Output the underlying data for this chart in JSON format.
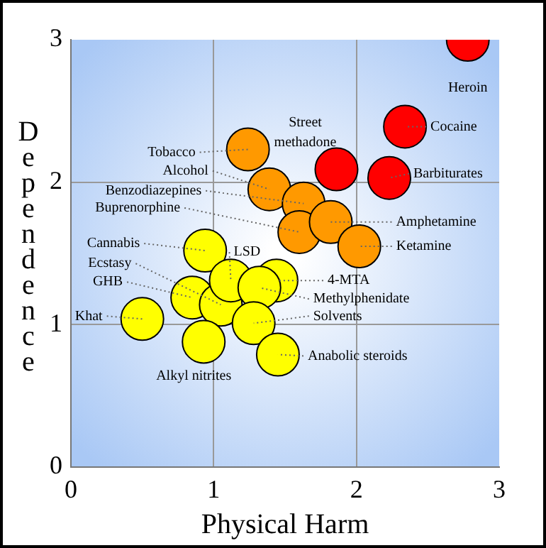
{
  "chart_data": {
    "type": "scatter",
    "xlabel": "Physical Harm",
    "ylabel": "Dependence",
    "xlim": [
      0,
      3
    ],
    "ylim": [
      0,
      3
    ],
    "xticks": [
      0,
      1,
      2,
      3
    ],
    "yticks": [
      0,
      1,
      2,
      3
    ],
    "grid": true,
    "marker": "circle",
    "series": [
      {
        "color": "#ffff00",
        "x": [
          0.94,
          0.85,
          1.44,
          1.05,
          1.12,
          1.32,
          1.28,
          0.5,
          0.93,
          1.45
        ],
        "values": [
          1.52,
          1.19,
          1.31,
          1.14,
          1.31,
          1.26,
          1.01,
          1.04,
          0.88,
          0.79
        ]
      },
      {
        "color": "#ff9900",
        "x": [
          1.24,
          1.39,
          1.63,
          1.6,
          1.82,
          2.02
        ],
        "values": [
          2.23,
          1.95,
          1.85,
          1.65,
          1.72,
          1.55
        ]
      },
      {
        "color": "#ff0000",
        "x": [
          2.78,
          2.34,
          1.86,
          2.23
        ],
        "values": [
          3.0,
          2.39,
          2.09,
          2.03
        ]
      }
    ],
    "annotations": [
      {
        "text": "Heroin",
        "x": 2.78,
        "y": 3.0
      },
      {
        "text": "Cocaine",
        "x": 2.34,
        "y": 2.39
      },
      {
        "text": "Street methadone",
        "x": 1.86,
        "y": 2.09
      },
      {
        "text": "Barbiturates",
        "x": 2.23,
        "y": 2.03
      },
      {
        "text": "Tobacco",
        "x": 1.24,
        "y": 2.23
      },
      {
        "text": "Alcohol",
        "x": 1.39,
        "y": 1.95
      },
      {
        "text": "Benzodiazepines",
        "x": 1.63,
        "y": 1.85
      },
      {
        "text": "Buprenorphine",
        "x": 1.6,
        "y": 1.65
      },
      {
        "text": "Amphetamine",
        "x": 1.82,
        "y": 1.72
      },
      {
        "text": "Ketamine",
        "x": 2.02,
        "y": 1.55
      },
      {
        "text": "Cannabis",
        "x": 0.94,
        "y": 1.52
      },
      {
        "text": "GHB",
        "x": 0.85,
        "y": 1.19
      },
      {
        "text": "4-MTA",
        "x": 1.44,
        "y": 1.31
      },
      {
        "text": "Ecstasy",
        "x": 1.05,
        "y": 1.14
      },
      {
        "text": "LSD",
        "x": 1.12,
        "y": 1.31
      },
      {
        "text": "Methylphenidate",
        "x": 1.32,
        "y": 1.26
      },
      {
        "text": "Solvents",
        "x": 1.28,
        "y": 1.01
      },
      {
        "text": "Khat",
        "x": 0.5,
        "y": 1.04
      },
      {
        "text": "Alkyl nitrites",
        "x": 0.93,
        "y": 0.88
      },
      {
        "text": "Anabolic steroids",
        "x": 1.45,
        "y": 0.79
      }
    ]
  }
}
